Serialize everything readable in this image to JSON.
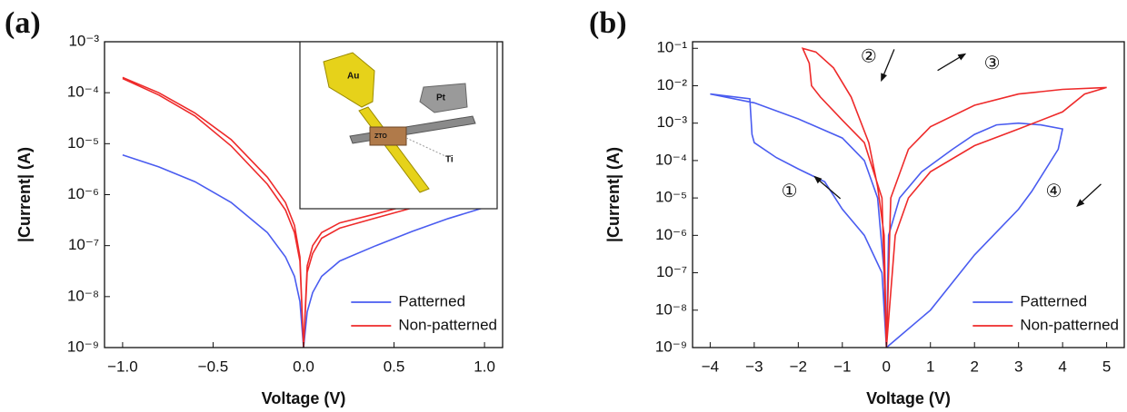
{
  "chart_data": [
    {
      "type": "line",
      "panel_label": "(a)",
      "xlabel": "Voltage (V)",
      "ylabel": "|Current| (A)",
      "log_y": true,
      "legend": "lower right",
      "xlim": [
        -1.1,
        1.1
      ],
      "ylim": [
        1e-09,
        0.001
      ],
      "xticks": [
        {
          "value": -1.0,
          "label": "−1.0"
        },
        {
          "value": -0.5,
          "label": "−0.5"
        },
        {
          "value": 0,
          "label": "0.0"
        },
        {
          "value": 0.5,
          "label": "0.5"
        },
        {
          "value": 1.0,
          "label": "1.0"
        }
      ],
      "yticks": [
        {
          "value": 1e-09,
          "label": "10⁻⁹"
        },
        {
          "value": 1e-08,
          "label": "10⁻⁸"
        },
        {
          "value": 1e-07,
          "label": "10⁻⁷"
        },
        {
          "value": 1e-06,
          "label": "10⁻⁶"
        },
        {
          "value": 1e-05,
          "label": "10⁻⁵"
        },
        {
          "value": 0.0001,
          "label": "10⁻⁴"
        },
        {
          "value": 0.001,
          "label": "10⁻³"
        }
      ],
      "inset_labels": [
        "Au",
        "Pt",
        "ZTO",
        "Ti"
      ],
      "series": [
        {
          "name": "Patterned",
          "color": "#4a5cf0",
          "x": [
            -1,
            -0.8,
            -0.6,
            -0.4,
            -0.2,
            -0.1,
            -0.05,
            -0.02,
            0,
            0.02,
            0.05,
            0.1,
            0.2,
            0.4,
            0.6,
            0.8,
            1
          ],
          "values": [
            6e-06,
            3.5e-06,
            1.8e-06,
            7e-07,
            1.8e-07,
            6e-08,
            2.5e-08,
            8e-09,
            1e-09,
            5e-09,
            1.2e-08,
            2.5e-08,
            5e-08,
            1e-07,
            1.9e-07,
            3.4e-07,
            5.6e-07
          ]
        },
        {
          "name": "Non-patterned",
          "color": "#ee2a2a",
          "x": [
            -1,
            -0.8,
            -0.6,
            -0.4,
            -0.2,
            -0.1,
            -0.05,
            -0.02,
            0,
            0.02,
            0.05,
            0.1,
            0.2,
            0.4,
            0.6,
            0.8,
            1,
            0.8,
            0.6,
            0.4,
            0.2,
            0.1,
            0.05,
            0.02,
            0,
            -0.02,
            -0.05,
            -0.1,
            -0.2,
            -0.4,
            -0.6,
            -0.8,
            -1
          ],
          "values": [
            0.0002,
            0.0001,
            4e-05,
            1.2e-05,
            2.2e-06,
            7e-07,
            2.5e-07,
            6e-08,
            1e-09,
            4e-08,
            1e-07,
            1.8e-07,
            2.8e-07,
            4.2e-07,
            6.5e-07,
            9e-07,
            1.2e-06,
            7.5e-07,
            5.5e-07,
            3.5e-07,
            2.2e-07,
            1.4e-07,
            7e-08,
            3e-08,
            1e-09,
            5e-08,
            1.8e-07,
            5e-07,
            1.6e-06,
            9e-06,
            3.5e-05,
            9e-05,
            0.00019
          ]
        }
      ]
    },
    {
      "type": "line",
      "panel_label": "(b)",
      "xlabel": "Voltage (V)",
      "ylabel": "|Current| (A)",
      "log_y": true,
      "legend": "lower right",
      "xlim": [
        -4.4,
        5.4
      ],
      "ylim": [
        1e-09,
        0.15
      ],
      "xticks": [
        {
          "value": -4,
          "label": "−4"
        },
        {
          "value": -3,
          "label": "−3"
        },
        {
          "value": -2,
          "label": "−2"
        },
        {
          "value": -1,
          "label": "−1"
        },
        0,
        1,
        2,
        3,
        4,
        5
      ],
      "yticks": [
        {
          "value": 1e-09,
          "label": "10⁻⁹"
        },
        {
          "value": 1e-08,
          "label": "10⁻⁸"
        },
        {
          "value": 1e-07,
          "label": "10⁻⁷"
        },
        {
          "value": 1e-06,
          "label": "10⁻⁶"
        },
        {
          "value": 1e-05,
          "label": "10⁻⁵"
        },
        {
          "value": 0.0001,
          "label": "10⁻⁴"
        },
        {
          "value": 0.001,
          "label": "10⁻³"
        },
        {
          "value": 0.01,
          "label": "10⁻²"
        },
        {
          "value": 0.1,
          "label": "10⁻¹"
        }
      ],
      "annotations": [
        "①",
        "②",
        "③",
        "④"
      ],
      "series": [
        {
          "name": "Patterned",
          "color": "#4a5cf0",
          "x": [
            0,
            0.05,
            0.3,
            0.8,
            1.5,
            2,
            2.5,
            3,
            3.5,
            4,
            3.9,
            3.3,
            3,
            2,
            1,
            0.3,
            0,
            -0.1,
            -0.5,
            -1,
            -1.4,
            -2,
            -2.5,
            -3,
            -3.05,
            -3.1,
            -4,
            -3,
            -2,
            -1,
            -0.5,
            -0.2,
            -0.05,
            0
          ],
          "values": [
            1e-09,
            1e-06,
            1e-05,
            5e-05,
            0.0002,
            0.0005,
            0.0009,
            0.001,
            0.0009,
            0.0007,
            0.0002,
            1.5e-05,
            5e-06,
            3e-07,
            1e-08,
            2e-09,
            1e-09,
            1e-07,
            1e-06,
            5e-06,
            2.7e-05,
            6e-05,
            0.00012,
            0.0003,
            0.0005,
            0.0045,
            0.006,
            0.0035,
            0.0013,
            0.0004,
            0.0001,
            1e-05,
            1e-07,
            1e-09
          ]
        },
        {
          "name": "Non-patterned",
          "color": "#ee2a2a",
          "x": [
            0,
            0.1,
            0.5,
            1,
            2,
            3,
            4,
            5,
            4.5,
            4,
            3,
            2,
            1,
            0.5,
            0.2,
            0,
            -0.1,
            -0.5,
            -1,
            -1.5,
            -1.7,
            -1.75,
            -1.9,
            -1.6,
            -1.2,
            -0.8,
            -0.4,
            -0.2,
            -0.05,
            0
          ],
          "values": [
            1e-09,
            1e-05,
            0.0002,
            0.0008,
            0.003,
            0.006,
            0.008,
            0.009,
            0.006,
            0.002,
            0.0007,
            0.00025,
            5e-05,
            1e-05,
            1e-06,
            1e-09,
            1e-05,
            0.0003,
            0.0012,
            0.005,
            0.01,
            0.04,
            0.1,
            0.08,
            0.03,
            0.005,
            0.0003,
            2e-05,
            1e-06,
            1e-09
          ]
        }
      ]
    }
  ]
}
